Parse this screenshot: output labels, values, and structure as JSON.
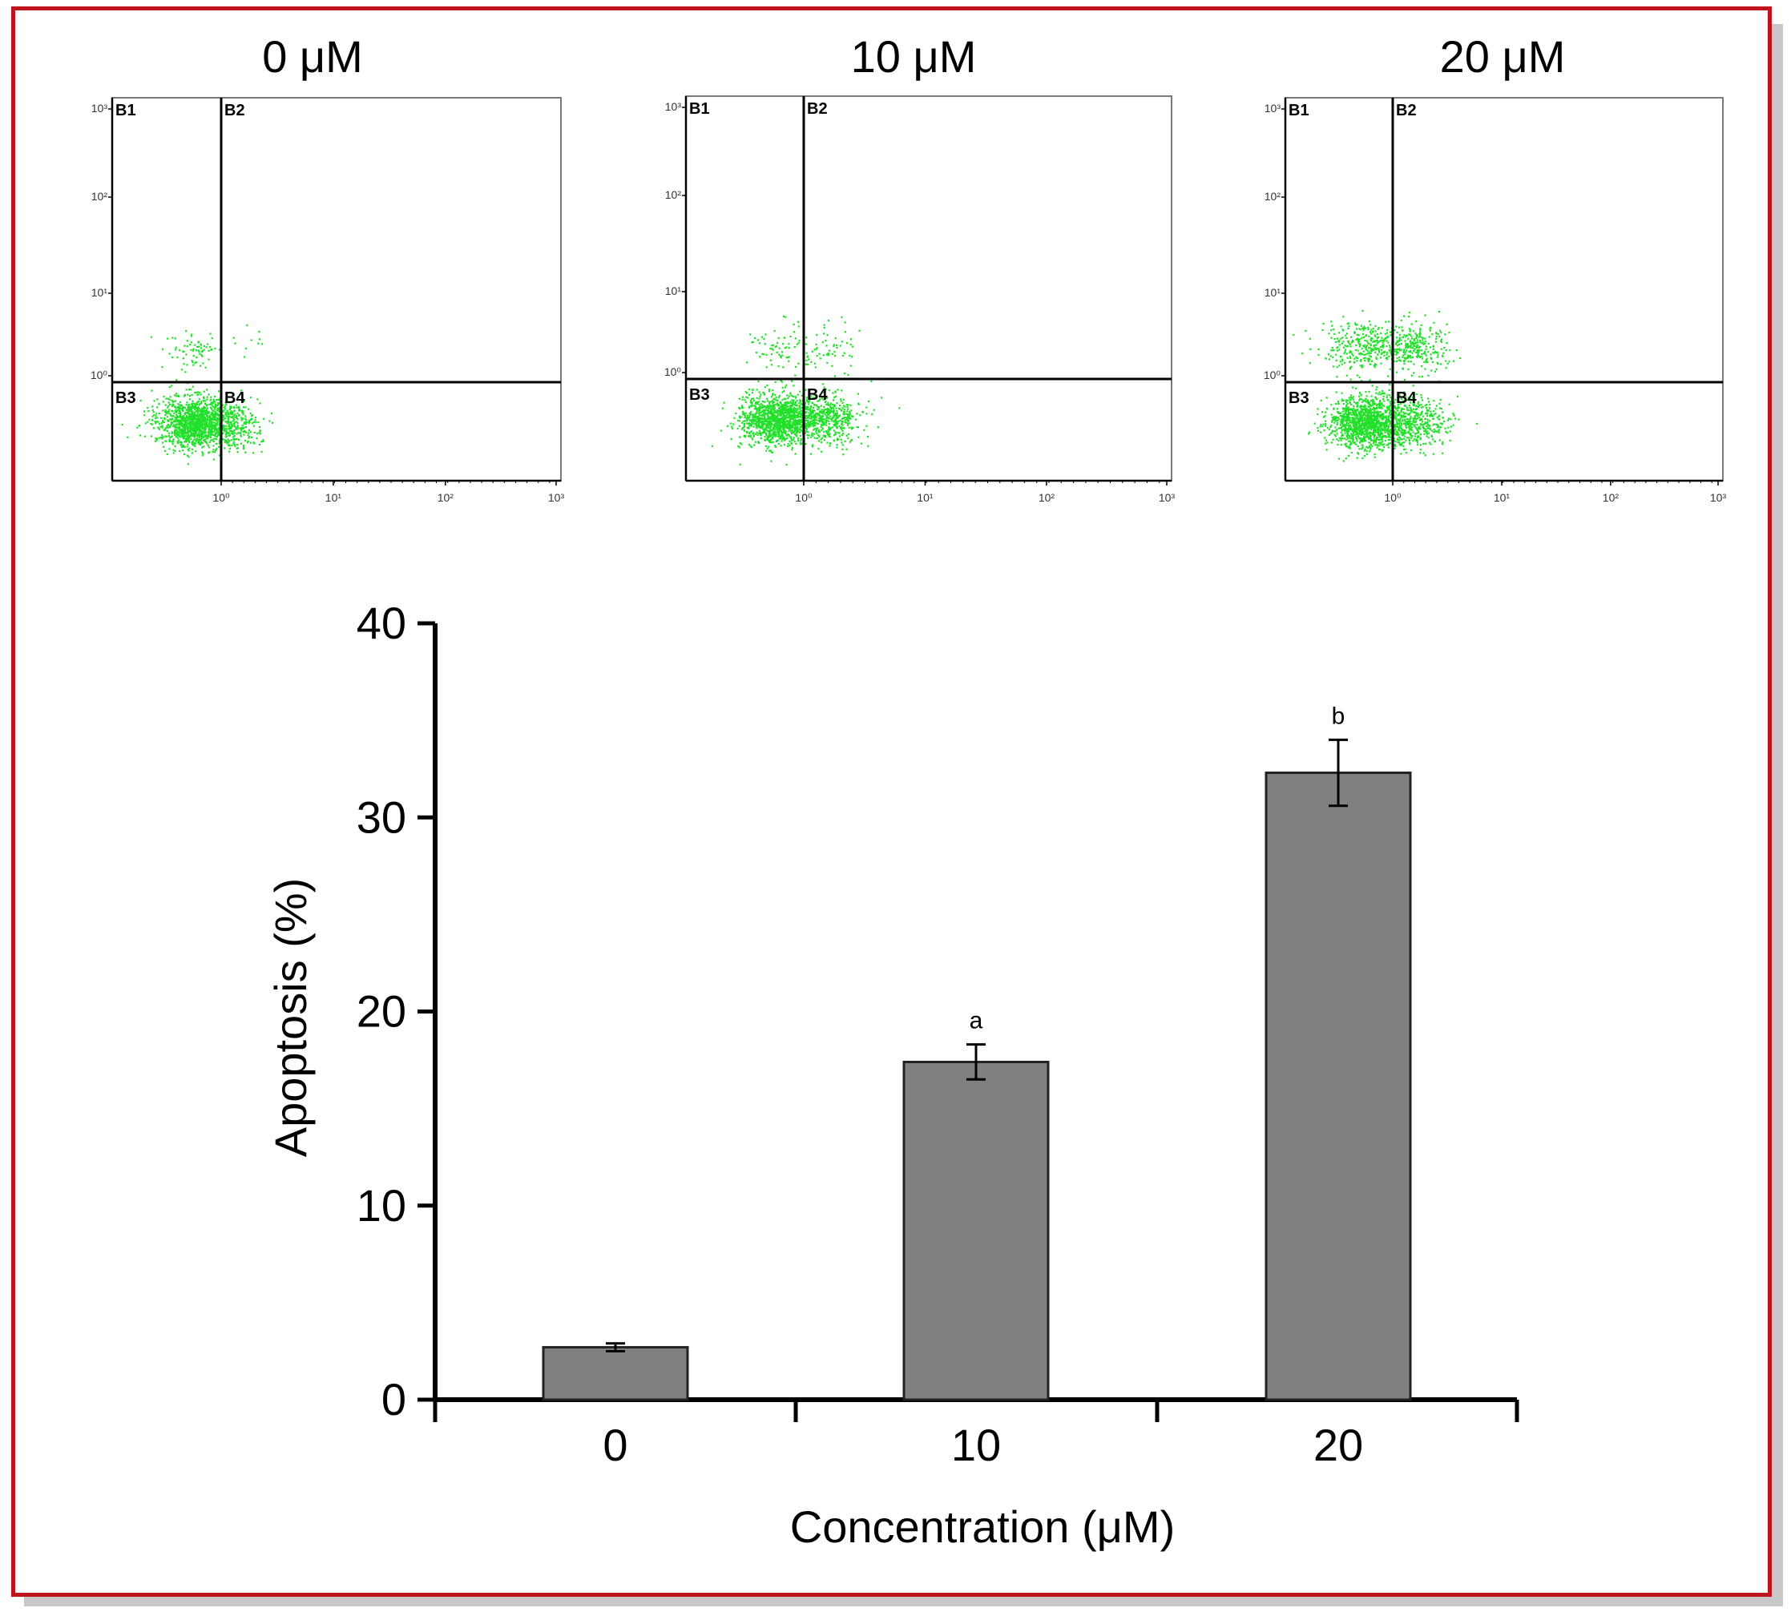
{
  "flow_panels": [
    {
      "title": "0 μM",
      "quadrants": [
        "B1",
        "B2",
        "B3",
        "B4"
      ],
      "y_ticks": [
        "10³",
        "10²",
        "10¹",
        "10⁰"
      ],
      "x_ticks": [
        "10⁰",
        "10¹",
        "10²",
        "10³"
      ]
    },
    {
      "title": "10 μM",
      "quadrants": [
        "B1",
        "B2",
        "B3",
        "B4"
      ],
      "y_ticks": [
        "10³",
        "10²",
        "10¹",
        "10⁰"
      ],
      "x_ticks": [
        "10⁰",
        "10¹",
        "10²",
        "10³"
      ]
    },
    {
      "title": "20 μM",
      "quadrants": [
        "B1",
        "B2",
        "B3",
        "B4"
      ],
      "y_ticks": [
        "10³",
        "10²",
        "10¹",
        "10⁰"
      ],
      "x_ticks": [
        "10⁰",
        "10¹",
        "10²",
        "10³"
      ]
    }
  ],
  "colors": {
    "frame": "#c0141c",
    "dots": "#22e02a",
    "bar": "#808080",
    "axis": "#000000"
  },
  "chart_data": {
    "type": "bar",
    "categories": [
      "0",
      "10",
      "20"
    ],
    "values": [
      2.7,
      17.4,
      32.3
    ],
    "errors": [
      0.2,
      0.9,
      1.7
    ],
    "annotations": [
      "",
      "a",
      "b"
    ],
    "xlabel": "Concentration (μM)",
    "ylabel": "Apoptosis (%)",
    "ylim": [
      0,
      40
    ],
    "yticks": [
      0,
      10,
      20,
      30,
      40
    ],
    "flow_panels_cloud": [
      {
        "panel": "0 μM",
        "lower_left": "dense",
        "upper_left": "sparse",
        "upper_right": "very sparse",
        "lower_right": "sparse"
      },
      {
        "panel": "10 μM",
        "lower_left": "dense",
        "upper_left": "sparse",
        "upper_right": "sparse",
        "lower_right": "moderate"
      },
      {
        "panel": "20 μM",
        "lower_left": "dense",
        "upper_left": "moderate",
        "upper_right": "moderate",
        "lower_right": "moderate"
      }
    ]
  }
}
